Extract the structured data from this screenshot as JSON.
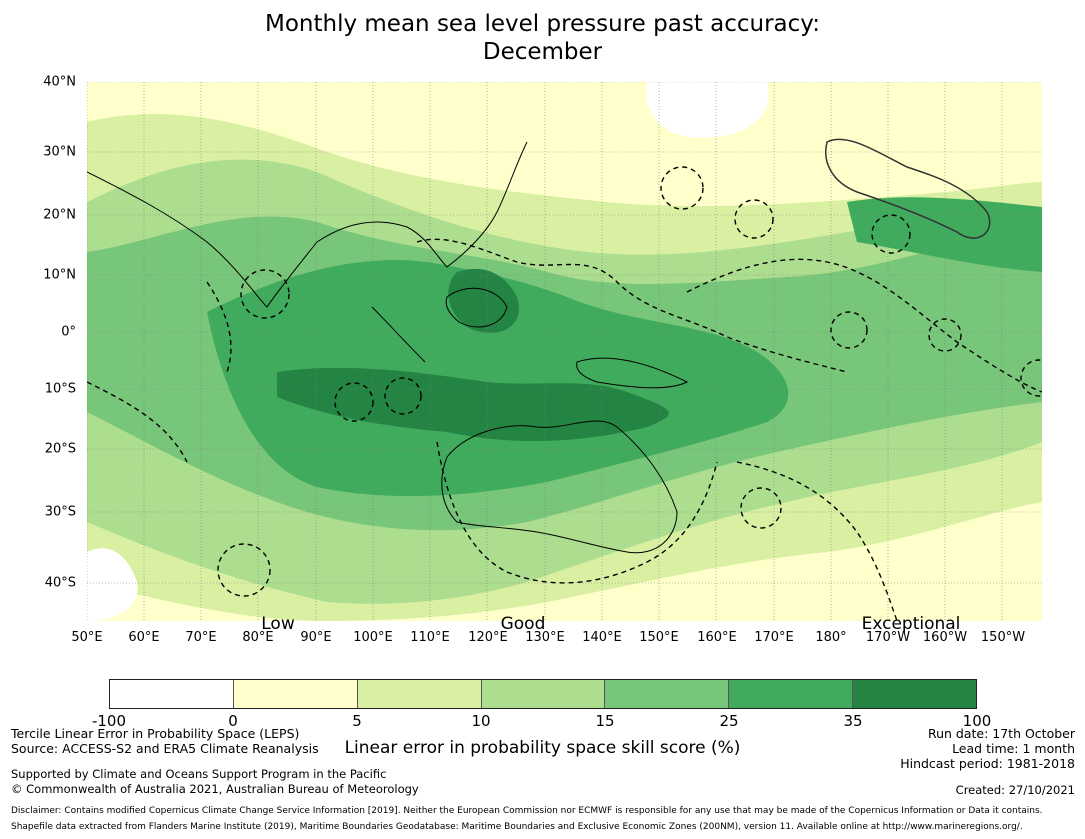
{
  "title": {
    "line1": "Monthly mean sea level pressure past accuracy:",
    "line2": "December"
  },
  "colors": {
    "c0": "#ffffff",
    "c1": "#ffffcc",
    "c2": "#d9f0a3",
    "c3": "#addd8e",
    "c4": "#78c679",
    "c5": "#41ab5d",
    "c6": "#238443"
  },
  "map": {
    "lat_labels": [
      "40°N",
      "30°N",
      "20°N",
      "10°N",
      "0°",
      "10°S",
      "20°S",
      "30°S",
      "40°S"
    ],
    "lon_labels": [
      "50°E",
      "60°E",
      "70°E",
      "80°E",
      "90°E",
      "100°E",
      "110°E",
      "120°E",
      "130°E",
      "140°E",
      "150°E",
      "160°E",
      "170°E",
      "180°",
      "170°W",
      "160°W",
      "150°W"
    ],
    "categories": [
      "Low",
      "Good",
      "Exceptional"
    ]
  },
  "colorbar": {
    "ticks": [
      "-100",
      "0",
      "5",
      "10",
      "15",
      "25",
      "35",
      "100"
    ],
    "label": "Linear error in probability space skill score (%)"
  },
  "footer": {
    "method": "Tercile Linear Error in Probability Space (LEPS)",
    "source": "Source: ACCESS-S2 and ERA5 Climate Reanalysis",
    "support": "Supported by Climate and Oceans Support Program in the Pacific",
    "copyright": "© Commonwealth of Australia 2021, Australian Bureau of Meteorology",
    "run_date": "Run date: 17th October",
    "lead_time": "Lead time: 1 month",
    "hindcast": "Hindcast period: 1981-2018",
    "created": "Created: 27/10/2021",
    "disclaimer": "Disclaimer: Contains modified Copernicus Climate Change Service Information [2019]. Neither the European Commission nor ECMWF is responsible for any use that may be made of the Copernicus Information or Data it contains.",
    "shapefile": "Shapefile data extracted from Flanders Marine Institute (2019), Maritime Boundaries Geodatabase: Maritime Boundaries and Exclusive Economic Zones (200NM), version 11. Available online at http://www.marineregions.org/."
  }
}
